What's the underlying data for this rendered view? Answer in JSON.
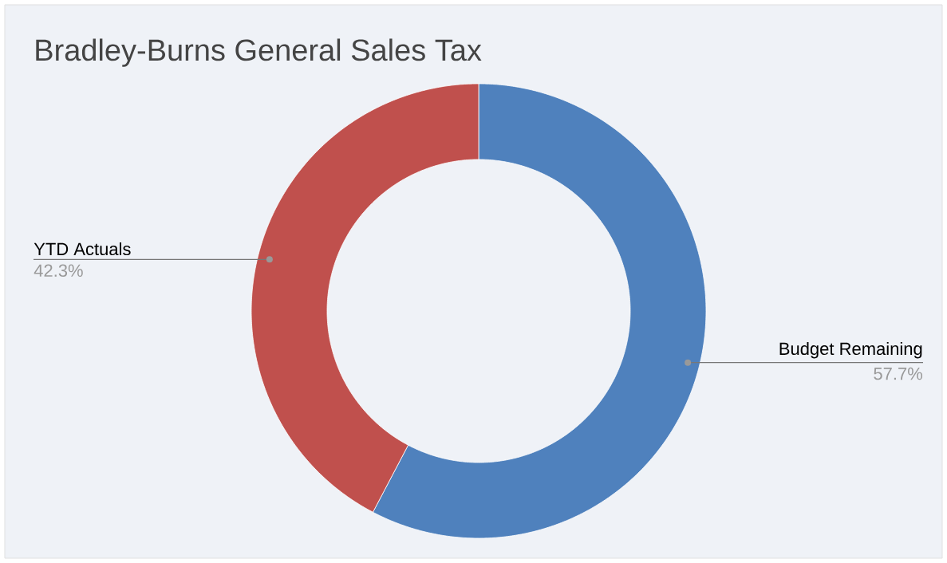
{
  "chart_data": {
    "type": "donut",
    "title": "Bradley-Burns General Sales Tax",
    "categories": [
      "Budget Remaining",
      "YTD Actuals"
    ],
    "values": [
      57.7,
      42.3
    ],
    "colors": [
      "#4f81bd",
      "#c0504d"
    ],
    "value_labels": [
      "57.7%",
      "42.3%"
    ]
  }
}
